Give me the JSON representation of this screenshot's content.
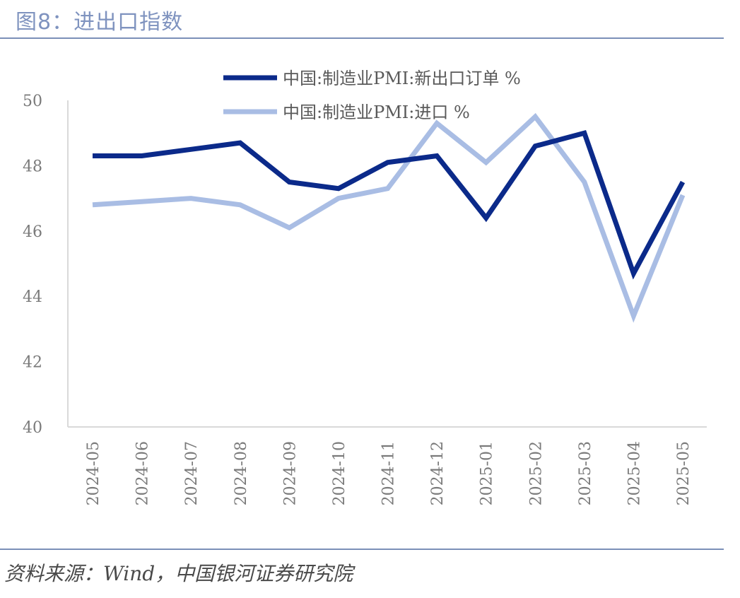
{
  "header": {
    "title": "图8：进出口指数"
  },
  "footer": {
    "source": "资料来源：Wind，中国银河证券研究院"
  },
  "colors": {
    "rule": "#7b8fb8",
    "title": "#7f93bf"
  },
  "chart_data": {
    "type": "line",
    "title": "",
    "xlabel": "",
    "ylabel": "",
    "ylim": [
      40,
      50
    ],
    "yticks": [
      "40",
      "42",
      "44",
      "46",
      "48",
      "50"
    ],
    "grid": false,
    "legend_position": "top",
    "categories": [
      "2024-05",
      "2024-06",
      "2024-07",
      "2024-08",
      "2024-09",
      "2024-10",
      "2024-11",
      "2024-12",
      "2025-01",
      "2025-02",
      "2025-03",
      "2025-04",
      "2025-05"
    ],
    "series": [
      {
        "name": "中国:制造业PMI:新出口订单 %",
        "color": "#0b2a8a",
        "values": [
          48.3,
          48.3,
          48.5,
          48.7,
          47.5,
          47.3,
          48.1,
          48.3,
          46.4,
          48.6,
          49.0,
          44.7,
          47.5
        ]
      },
      {
        "name": "中国:制造业PMI:进口 %",
        "color": "#a9bde4",
        "values": [
          46.8,
          46.9,
          47.0,
          46.8,
          46.1,
          47.0,
          47.3,
          49.3,
          48.1,
          49.5,
          47.5,
          43.4,
          47.1
        ]
      }
    ]
  }
}
